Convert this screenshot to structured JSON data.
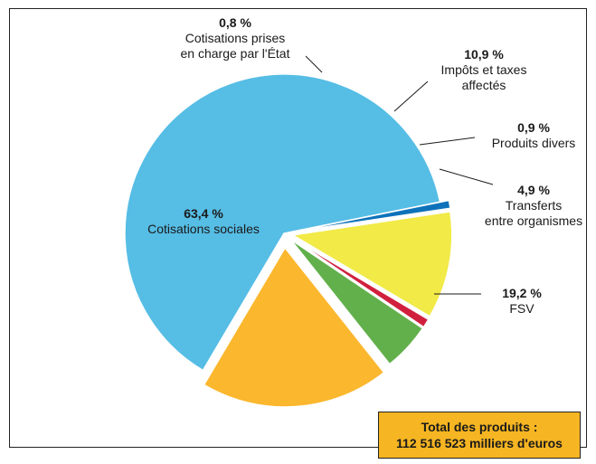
{
  "chart_data": {
    "type": "pie",
    "title": "",
    "unit": "%",
    "slices": [
      {
        "name": "Cotisations sociales",
        "label_lines": [
          "Cotisations sociales"
        ],
        "value": 63.4,
        "value_label": "63,4 %",
        "color": "#56bde5"
      },
      {
        "name": "Cotisations prises en charge par l'État",
        "label_lines": [
          "Cotisations prises",
          "en charge par l'État"
        ],
        "value": 0.8,
        "value_label": "0,8 %",
        "color": "#0d72b9"
      },
      {
        "name": "Impôts et taxes affectés",
        "label_lines": [
          "Impôts et taxes",
          "affectés"
        ],
        "value": 10.9,
        "value_label": "10,9 %",
        "color": "#f1ea47"
      },
      {
        "name": "Produits divers",
        "label_lines": [
          "Produits divers"
        ],
        "value": 0.9,
        "value_label": "0,9 %",
        "color": "#d0203e"
      },
      {
        "name": "Transferts entre organismes",
        "label_lines": [
          "Transferts",
          "entre organismes"
        ],
        "value": 4.9,
        "value_label": "4,9 %",
        "color": "#62b04b"
      },
      {
        "name": "FSV",
        "label_lines": [
          "FSV"
        ],
        "value": 19.2,
        "value_label": "19,2 %",
        "color": "#fbb72d"
      }
    ],
    "legend": "none",
    "annotation": {
      "line1": "Total des produits :",
      "line2": "112 516 523 milliers d'euros"
    }
  }
}
